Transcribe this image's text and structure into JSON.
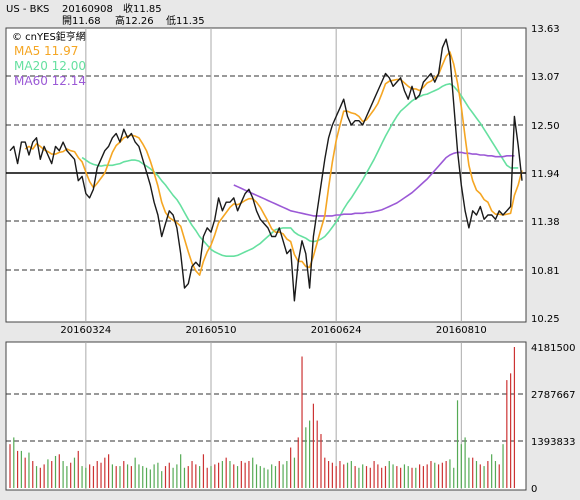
{
  "header": {
    "symbol": "US - BKS",
    "date": "20160908",
    "close": "收11.85",
    "open": "開11.68",
    "high": "高12.26",
    "low": "低11.35"
  },
  "watermark": "© cnYES鉅亨網",
  "ma_labels": [
    {
      "text": "MA5 11.97",
      "color": "#f5a623"
    },
    {
      "text": "MA20 12.00",
      "color": "#66e0a0"
    },
    {
      "text": "MA60 12.14",
      "color": "#9b59d6"
    }
  ],
  "colors": {
    "price": "#1a1a1a",
    "ma5": "#f5a623",
    "ma20": "#66e0a0",
    "ma60": "#9b59d6",
    "vol_up": "#cc3333",
    "vol_down": "#55aa55",
    "panel_bg": "#ffffff",
    "page_bg": "#e8e8e8"
  },
  "chart_data": [
    {
      "type": "line",
      "title": "",
      "y_ticks": [
        "13.63",
        "13.07",
        "12.50",
        "11.94",
        "11.38",
        "10.81",
        "10.25"
      ],
      "ylim": [
        10.25,
        13.63
      ],
      "x_ticks": [
        {
          "label": "20160324",
          "index": 20
        },
        {
          "label": "20160510",
          "index": 53
        },
        {
          "label": "20160624",
          "index": 86
        },
        {
          "label": "20160810",
          "index": 119
        }
      ],
      "reference_line": 11.94,
      "series": [
        {
          "key": "price",
          "values": [
            12.2,
            12.25,
            12.05,
            12.3,
            12.3,
            12.15,
            12.3,
            12.35,
            12.1,
            12.25,
            12.15,
            12.05,
            12.25,
            12.2,
            12.3,
            12.2,
            12.15,
            12.1,
            11.85,
            11.9,
            11.7,
            11.65,
            11.75,
            12.0,
            12.1,
            12.2,
            12.25,
            12.35,
            12.4,
            12.3,
            12.45,
            12.35,
            12.4,
            12.3,
            12.25,
            12.1,
            11.95,
            11.8,
            11.6,
            11.45,
            11.2,
            11.35,
            11.5,
            11.45,
            11.3,
            11.0,
            10.6,
            10.65,
            10.85,
            10.9,
            10.85,
            11.2,
            11.3,
            11.25,
            11.4,
            11.65,
            11.5,
            11.6,
            11.6,
            11.65,
            11.5,
            11.6,
            11.7,
            11.75,
            11.65,
            11.5,
            11.4,
            11.35,
            11.3,
            11.2,
            11.2,
            11.3,
            11.15,
            11.0,
            11.05,
            10.45,
            10.9,
            11.15,
            11.0,
            10.6,
            11.2,
            11.5,
            11.8,
            12.1,
            12.35,
            12.5,
            12.6,
            12.7,
            12.8,
            12.6,
            12.5,
            12.55,
            12.55,
            12.5,
            12.6,
            12.7,
            12.8,
            12.9,
            13.0,
            13.1,
            13.05,
            12.95,
            13.0,
            13.05,
            12.9,
            12.8,
            12.95,
            12.8,
            12.85,
            13.0,
            13.05,
            13.1,
            13.0,
            13.1,
            13.4,
            13.5,
            13.3,
            12.75,
            12.2,
            11.8,
            11.5,
            11.3,
            11.5,
            11.45,
            11.55,
            11.4,
            11.45,
            11.45,
            11.4,
            11.5,
            11.45,
            11.5,
            11.55,
            12.6,
            12.26,
            11.85
          ]
        },
        {
          "key": "ma5",
          "values": [
            null,
            null,
            null,
            null,
            12.22,
            12.25,
            12.22,
            12.28,
            12.25,
            12.21,
            12.19,
            12.16,
            12.16,
            12.18,
            12.19,
            12.22,
            12.2,
            12.19,
            12.12,
            12.07,
            11.95,
            11.84,
            11.77,
            11.82,
            11.88,
            11.94,
            12.06,
            12.18,
            12.26,
            12.3,
            12.35,
            12.37,
            12.38,
            12.37,
            12.35,
            12.28,
            12.2,
            12.08,
            11.94,
            11.79,
            11.6,
            11.48,
            11.42,
            11.39,
            11.36,
            11.32,
            11.17,
            11.02,
            10.89,
            10.8,
            10.75,
            10.91,
            11.02,
            11.1,
            11.22,
            11.36,
            11.42,
            11.48,
            11.54,
            11.58,
            11.57,
            11.59,
            11.62,
            11.64,
            11.64,
            11.6,
            11.54,
            11.46,
            11.38,
            11.29,
            11.25,
            11.25,
            11.23,
            11.17,
            11.14,
            10.99,
            10.91,
            10.91,
            10.85,
            10.84,
            10.97,
            11.13,
            11.29,
            11.44,
            11.77,
            12.07,
            12.32,
            12.5,
            12.66,
            12.66,
            12.64,
            12.63,
            12.6,
            12.54,
            12.56,
            12.62,
            12.68,
            12.75,
            12.86,
            12.98,
            13.01,
            13.02,
            13.03,
            13.03,
            12.99,
            12.95,
            12.92,
            12.92,
            12.9,
            12.94,
            12.99,
            13.01,
            13.05,
            13.09,
            13.2,
            13.3,
            13.35,
            13.21,
            12.99,
            12.71,
            12.36,
            12.03,
            11.85,
            11.74,
            11.7,
            11.63,
            11.6,
            11.5,
            11.46,
            11.46,
            11.45,
            11.46,
            11.47,
            11.68,
            11.8,
            11.97
          ]
        },
        {
          "key": "ma20",
          "values": [
            null,
            null,
            null,
            null,
            null,
            null,
            null,
            null,
            null,
            null,
            null,
            null,
            null,
            null,
            null,
            null,
            null,
            null,
            null,
            12.12,
            12.09,
            12.06,
            12.04,
            12.03,
            12.02,
            12.03,
            12.03,
            12.03,
            12.04,
            12.05,
            12.07,
            12.08,
            12.09,
            12.09,
            12.08,
            12.05,
            12.02,
            11.99,
            11.95,
            11.91,
            11.85,
            11.8,
            11.74,
            11.68,
            11.63,
            11.56,
            11.48,
            11.4,
            11.33,
            11.27,
            11.2,
            11.15,
            11.1,
            11.05,
            11.02,
            11.0,
            10.98,
            10.97,
            10.97,
            10.97,
            10.98,
            11.0,
            11.02,
            11.04,
            11.06,
            11.09,
            11.12,
            11.16,
            11.2,
            11.24,
            11.28,
            11.29,
            11.3,
            11.3,
            11.3,
            11.25,
            11.22,
            11.2,
            11.18,
            11.15,
            11.14,
            11.15,
            11.17,
            11.2,
            11.25,
            11.31,
            11.37,
            11.44,
            11.52,
            11.59,
            11.65,
            11.72,
            11.79,
            11.86,
            11.94,
            12.02,
            12.1,
            12.19,
            12.28,
            12.37,
            12.45,
            12.53,
            12.6,
            12.66,
            12.7,
            12.74,
            12.78,
            12.81,
            12.83,
            12.85,
            12.86,
            12.88,
            12.9,
            12.92,
            12.95,
            12.97,
            12.98,
            12.95,
            12.9,
            12.84,
            12.77,
            12.7,
            12.64,
            12.58,
            12.52,
            12.45,
            12.38,
            12.31,
            12.24,
            12.17,
            12.1,
            12.03,
            12.0,
            12.0,
            12.0
          ]
        },
        {
          "key": "ma60",
          "values": [
            null,
            null,
            null,
            null,
            null,
            null,
            null,
            null,
            null,
            null,
            null,
            null,
            null,
            null,
            null,
            null,
            null,
            null,
            null,
            null,
            null,
            null,
            null,
            null,
            null,
            null,
            null,
            null,
            null,
            null,
            null,
            null,
            null,
            null,
            null,
            null,
            null,
            null,
            null,
            null,
            null,
            null,
            null,
            null,
            null,
            null,
            null,
            null,
            null,
            null,
            null,
            null,
            null,
            null,
            null,
            null,
            null,
            null,
            null,
            11.8,
            11.78,
            11.76,
            11.74,
            11.72,
            11.7,
            11.68,
            11.66,
            11.64,
            11.62,
            11.6,
            11.58,
            11.56,
            11.54,
            11.52,
            11.5,
            11.49,
            11.48,
            11.47,
            11.46,
            11.45,
            11.44,
            11.44,
            11.44,
            11.44,
            11.44,
            11.44,
            11.45,
            11.45,
            11.46,
            11.46,
            11.46,
            11.47,
            11.47,
            11.47,
            11.48,
            11.48,
            11.49,
            11.5,
            11.51,
            11.53,
            11.55,
            11.57,
            11.59,
            11.62,
            11.65,
            11.68,
            11.71,
            11.75,
            11.79,
            11.83,
            11.87,
            11.92,
            11.97,
            12.02,
            12.07,
            12.12,
            12.15,
            12.17,
            12.18,
            12.18,
            12.17,
            12.17,
            12.16,
            12.16,
            12.15,
            12.15,
            12.14,
            12.14,
            12.13,
            12.13,
            12.13,
            12.14,
            12.14,
            12.14
          ]
        }
      ]
    },
    {
      "type": "bar",
      "title": "",
      "y_ticks": [
        "4181500",
        "2787667",
        "1393833",
        "0"
      ],
      "ylim": [
        0,
        4181500
      ],
      "values": [
        1300000,
        1500000,
        1100000,
        1100000,
        900000,
        1050000,
        800000,
        650000,
        600000,
        700000,
        850000,
        800000,
        950000,
        1000000,
        800000,
        650000,
        750000,
        900000,
        1100000,
        650000,
        600000,
        700000,
        650000,
        800000,
        750000,
        900000,
        1000000,
        700000,
        650000,
        650000,
        800000,
        700000,
        650000,
        900000,
        700000,
        650000,
        600000,
        550000,
        700000,
        750000,
        500000,
        650000,
        750000,
        600000,
        700000,
        1000000,
        600000,
        650000,
        800000,
        700000,
        650000,
        1000000,
        600000,
        650000,
        700000,
        750000,
        800000,
        900000,
        800000,
        700000,
        650000,
        800000,
        750000,
        800000,
        900000,
        700000,
        650000,
        600000,
        550000,
        700000,
        650000,
        800000,
        700000,
        800000,
        1200000,
        900000,
        1500000,
        3900000,
        1800000,
        2000000,
        2500000,
        2000000,
        1600000,
        900000,
        800000,
        750000,
        650000,
        800000,
        700000,
        750000,
        800000,
        650000,
        600000,
        700000,
        650000,
        600000,
        800000,
        700000,
        600000,
        650000,
        800000,
        700000,
        650000,
        600000,
        700000,
        650000,
        600000,
        600000,
        700000,
        650000,
        700000,
        800000,
        750000,
        700000,
        750000,
        800000,
        850000,
        600000,
        2600000,
        1300000,
        1500000,
        900000,
        900000,
        800000,
        700000,
        650000,
        800000,
        1000000,
        800000,
        700000,
        1300000,
        3200000,
        3400000,
        4181500
      ],
      "up": [
        true,
        false,
        true,
        false,
        true,
        false,
        true,
        false,
        true,
        true,
        false,
        true,
        false,
        true,
        false,
        false,
        true,
        false,
        true,
        false,
        false,
        true,
        true,
        true,
        true,
        true,
        true,
        false,
        true,
        false,
        true,
        false,
        true,
        false,
        false,
        false,
        false,
        false,
        false,
        false,
        false,
        true,
        true,
        false,
        false,
        false,
        false,
        true,
        true,
        true,
        false,
        true,
        true,
        false,
        true,
        true,
        false,
        true,
        false,
        true,
        false,
        true,
        true,
        true,
        false,
        false,
        false,
        false,
        false,
        false,
        false,
        true,
        false,
        false,
        true,
        false,
        true,
        true,
        false,
        false,
        true,
        true,
        true,
        true,
        true,
        true,
        true,
        true,
        true,
        false,
        false,
        true,
        false,
        false,
        true,
        true,
        true,
        true,
        true,
        true,
        false,
        false,
        true,
        true,
        false,
        false,
        true,
        false,
        true,
        true,
        true,
        true,
        false,
        true,
        true,
        true,
        false,
        false,
        false,
        false,
        false,
        false,
        true,
        false,
        true,
        false,
        true,
        false,
        false,
        true,
        false,
        true,
        true,
        true,
        false,
        false
      ]
    }
  ]
}
